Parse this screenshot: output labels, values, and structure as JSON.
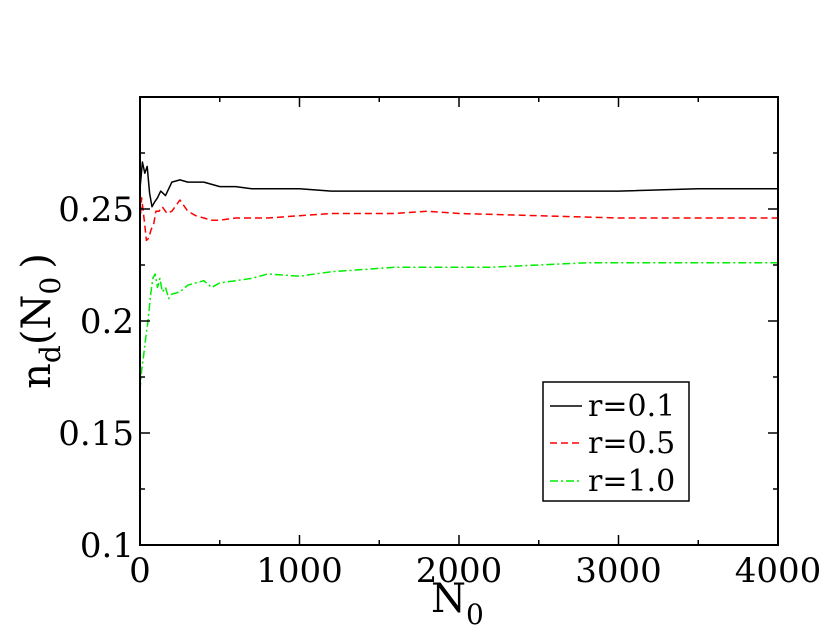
{
  "chart_data": {
    "type": "line",
    "title": "",
    "xlabel": "N",
    "xlabel_sub": "0",
    "ylabel_main": "n",
    "ylabel_sub": "d",
    "ylabel_paren_open": "(",
    "ylabel_inner": "N",
    "ylabel_inner_sub": "0",
    "ylabel_paren_close": ")",
    "xlim": [
      0,
      4000
    ],
    "ylim": [
      0.1,
      0.3
    ],
    "xticks": [
      0,
      1000,
      2000,
      3000,
      4000
    ],
    "xtick_labels": [
      "0",
      "1000",
      "2000",
      "3000",
      "4000"
    ],
    "yticks": [
      0.1,
      0.15,
      0.2,
      0.25
    ],
    "ytick_labels": [
      "0.1",
      "0.15",
      "0.2",
      "0.25"
    ],
    "grid": false,
    "legend": "lower-right",
    "series": [
      {
        "name": "r=0.1",
        "color": "#000000",
        "dash": "solid",
        "x": [
          0,
          15,
          30,
          45,
          60,
          75,
          90,
          110,
          130,
          160,
          200,
          250,
          300,
          350,
          400,
          450,
          500,
          600,
          700,
          800,
          1000,
          1200,
          1400,
          1600,
          1800,
          2000,
          2500,
          3000,
          3500,
          4000
        ],
        "y": [
          0.259,
          0.271,
          0.266,
          0.269,
          0.257,
          0.251,
          0.253,
          0.255,
          0.258,
          0.256,
          0.262,
          0.263,
          0.262,
          0.262,
          0.262,
          0.261,
          0.26,
          0.26,
          0.259,
          0.259,
          0.259,
          0.258,
          0.258,
          0.258,
          0.258,
          0.258,
          0.258,
          0.258,
          0.259,
          0.259
        ]
      },
      {
        "name": "r=0.5",
        "color": "#ff0000",
        "dash": "dashed",
        "x": [
          0,
          10,
          25,
          40,
          55,
          70,
          85,
          100,
          120,
          140,
          170,
          200,
          250,
          300,
          350,
          400,
          450,
          500,
          600,
          700,
          800,
          1000,
          1200,
          1400,
          1600,
          1800,
          2000,
          2500,
          3000,
          3500,
          4000
        ],
        "y": [
          0.243,
          0.255,
          0.246,
          0.236,
          0.237,
          0.241,
          0.243,
          0.249,
          0.249,
          0.251,
          0.248,
          0.249,
          0.254,
          0.249,
          0.247,
          0.246,
          0.245,
          0.245,
          0.246,
          0.246,
          0.246,
          0.247,
          0.248,
          0.248,
          0.248,
          0.249,
          0.248,
          0.247,
          0.246,
          0.246,
          0.246
        ]
      },
      {
        "name": "r=1.0",
        "color": "#00ee00",
        "dash": "dashdot",
        "x": [
          0,
          10,
          20,
          35,
          50,
          65,
          80,
          95,
          110,
          125,
          140,
          160,
          180,
          200,
          250,
          300,
          350,
          400,
          450,
          500,
          600,
          700,
          800,
          1000,
          1200,
          1400,
          1600,
          1800,
          2000,
          2200,
          2500,
          2800,
          3000,
          3500,
          4000
        ],
        "y": [
          0.169,
          0.178,
          0.183,
          0.192,
          0.2,
          0.211,
          0.219,
          0.221,
          0.215,
          0.219,
          0.213,
          0.215,
          0.21,
          0.212,
          0.213,
          0.216,
          0.217,
          0.218,
          0.215,
          0.217,
          0.218,
          0.219,
          0.221,
          0.22,
          0.222,
          0.223,
          0.224,
          0.224,
          0.224,
          0.224,
          0.225,
          0.226,
          0.226,
          0.226,
          0.226
        ]
      }
    ]
  }
}
